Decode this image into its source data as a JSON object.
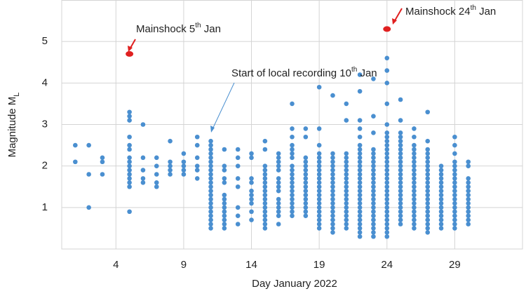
{
  "chart_data": {
    "type": "scatter",
    "xlabel": "Day January 2022",
    "ylabel": "Magnitude M",
    "ylabel_sub": "L",
    "xlim": [
      0,
      34
    ],
    "xticks": [
      4,
      9,
      14,
      19,
      24,
      29
    ],
    "ylim": [
      0,
      6
    ],
    "yticks": [
      1,
      2,
      3,
      4,
      5
    ],
    "grid": true,
    "color": "#4a8fd0",
    "columns": [
      {
        "x": 1,
        "values": [
          2.5,
          2.1
        ]
      },
      {
        "x": 2,
        "values": [
          2.5,
          1.8,
          1.0
        ]
      },
      {
        "x": 3,
        "values": [
          2.2,
          2.1,
          1.8
        ]
      },
      {
        "x": 5,
        "values": [
          3.3,
          3.2,
          3.1,
          2.7,
          2.5,
          2.4,
          2.2,
          2.1,
          2.0,
          1.9,
          1.8,
          1.7,
          1.6,
          1.5,
          0.9
        ]
      },
      {
        "x": 6,
        "values": [
          3.0,
          2.2,
          1.9,
          1.7,
          1.6
        ]
      },
      {
        "x": 7,
        "values": [
          2.2,
          2.0,
          1.8,
          1.6,
          1.5
        ]
      },
      {
        "x": 8,
        "values": [
          2.6,
          2.1,
          2.0,
          1.9,
          1.8
        ]
      },
      {
        "x": 9,
        "values": [
          2.3,
          2.1,
          2.0,
          1.9,
          1.8
        ]
      },
      {
        "x": 10,
        "values": [
          2.7,
          2.5,
          2.2,
          2.0,
          1.9,
          1.7
        ]
      },
      {
        "x": 11,
        "values": [
          2.6,
          2.5,
          2.4,
          2.3,
          2.2,
          2.1,
          2.0,
          1.9,
          1.8,
          1.7,
          1.6,
          1.5,
          1.4,
          1.3,
          1.2,
          1.1,
          1.0,
          0.9,
          0.8,
          0.7,
          0.6,
          0.5
        ]
      },
      {
        "x": 12,
        "values": [
          2.4,
          2.0,
          1.9,
          1.7,
          1.6,
          1.3,
          1.2,
          1.1,
          1.0,
          0.9,
          0.8,
          0.7,
          0.6,
          0.5
        ]
      },
      {
        "x": 13,
        "values": [
          2.4,
          2.2,
          2.0,
          1.7,
          1.5,
          1.0,
          0.8,
          0.6
        ]
      },
      {
        "x": 14,
        "values": [
          2.3,
          2.2,
          1.7,
          1.6,
          1.4,
          1.3,
          1.2,
          1.1,
          0.9,
          0.7
        ]
      },
      {
        "x": 15,
        "values": [
          2.6,
          2.4,
          2.0,
          1.9,
          1.8,
          1.7,
          1.6,
          1.5,
          1.4,
          1.3,
          1.2,
          1.1,
          1.0,
          0.9,
          0.8,
          0.7,
          0.6,
          0.5
        ]
      },
      {
        "x": 16,
        "values": [
          2.3,
          2.2,
          2.1,
          2.0,
          1.9,
          1.7,
          1.6,
          1.5,
          1.4,
          1.2,
          1.1,
          1.0,
          0.9,
          0.8,
          0.6
        ]
      },
      {
        "x": 17,
        "values": [
          3.5,
          2.9,
          2.7,
          2.5,
          2.4,
          2.3,
          2.2,
          2.0,
          1.9,
          1.8,
          1.7,
          1.6,
          1.5,
          1.4,
          1.3,
          1.2,
          1.1,
          1.0,
          0.9,
          0.8
        ]
      },
      {
        "x": 18,
        "values": [
          2.9,
          2.7,
          2.2,
          2.1,
          2.0,
          1.9,
          1.8,
          1.7,
          1.6,
          1.5,
          1.4,
          1.3,
          1.2,
          1.1,
          1.0,
          0.9,
          0.8
        ]
      },
      {
        "x": 19,
        "values": [
          3.9,
          2.9,
          2.5,
          2.3,
          2.2,
          2.1,
          2.0,
          1.9,
          1.8,
          1.7,
          1.6,
          1.5,
          1.4,
          1.3,
          1.2,
          1.1,
          1.0,
          0.9,
          0.8,
          0.7,
          0.6,
          0.5
        ]
      },
      {
        "x": 20,
        "values": [
          3.7,
          2.3,
          2.2,
          2.1,
          2.0,
          1.9,
          1.8,
          1.7,
          1.6,
          1.5,
          1.4,
          1.3,
          1.2,
          1.1,
          1.0,
          0.9,
          0.8,
          0.7,
          0.6,
          0.5,
          0.4
        ]
      },
      {
        "x": 21,
        "values": [
          3.5,
          3.1,
          2.3,
          2.2,
          2.1,
          2.0,
          1.9,
          1.8,
          1.7,
          1.6,
          1.5,
          1.4,
          1.3,
          1.2,
          1.1,
          1.0,
          0.9,
          0.8,
          0.7,
          0.6,
          0.5
        ]
      },
      {
        "x": 22,
        "values": [
          4.2,
          3.8,
          3.1,
          2.9,
          2.7,
          2.5,
          2.4,
          2.3,
          2.2,
          2.1,
          2.0,
          1.9,
          1.8,
          1.7,
          1.6,
          1.5,
          1.4,
          1.3,
          1.2,
          1.1,
          1.0,
          0.9,
          0.8,
          0.7,
          0.6,
          0.5,
          0.4,
          0.3
        ]
      },
      {
        "x": 23,
        "values": [
          4.1,
          3.2,
          2.8,
          2.4,
          2.3,
          2.2,
          2.1,
          2.0,
          1.9,
          1.8,
          1.7,
          1.6,
          1.5,
          1.4,
          1.3,
          1.2,
          1.1,
          1.0,
          0.9,
          0.8,
          0.7,
          0.6,
          0.5,
          0.4,
          0.3
        ]
      },
      {
        "x": 24,
        "values": [
          4.6,
          4.3,
          4.0,
          3.5,
          3.0,
          2.8,
          2.7,
          2.6,
          2.5,
          2.4,
          2.3,
          2.2,
          2.1,
          2.0,
          1.9,
          1.8,
          1.7,
          1.6,
          1.5,
          1.4,
          1.3,
          1.2,
          1.1,
          1.0,
          0.9,
          0.8,
          0.7,
          0.6,
          0.5,
          0.4,
          0.3
        ]
      },
      {
        "x": 25,
        "values": [
          3.6,
          3.1,
          2.8,
          2.7,
          2.6,
          2.5,
          2.4,
          2.3,
          2.2,
          2.1,
          2.0,
          1.9,
          1.8,
          1.7,
          1.6,
          1.5,
          1.4,
          1.3,
          1.2,
          1.1,
          1.0,
          0.9,
          0.8,
          0.7,
          0.6
        ]
      },
      {
        "x": 26,
        "values": [
          2.9,
          2.7,
          2.5,
          2.4,
          2.3,
          2.2,
          2.1,
          2.0,
          1.9,
          1.8,
          1.7,
          1.6,
          1.5,
          1.4,
          1.3,
          1.2,
          1.1,
          1.0,
          0.9,
          0.8,
          0.7,
          0.6,
          0.5
        ]
      },
      {
        "x": 27,
        "values": [
          3.3,
          2.6,
          2.4,
          2.3,
          2.2,
          2.1,
          2.0,
          1.9,
          1.8,
          1.7,
          1.6,
          1.5,
          1.4,
          1.3,
          1.2,
          1.1,
          1.0,
          0.9,
          0.8,
          0.7,
          0.6,
          0.5,
          0.4
        ]
      },
      {
        "x": 28,
        "values": [
          2.0,
          1.9,
          1.8,
          1.7,
          1.6,
          1.5,
          1.4,
          1.3,
          1.2,
          1.1,
          1.0,
          0.9,
          0.8,
          0.7,
          0.6,
          0.5
        ]
      },
      {
        "x": 29,
        "values": [
          2.7,
          2.5,
          2.3,
          2.1,
          2.0,
          1.9,
          1.8,
          1.7,
          1.6,
          1.5,
          1.4,
          1.3,
          1.2,
          1.1,
          1.0,
          0.9,
          0.8,
          0.7,
          0.6,
          0.5
        ]
      },
      {
        "x": 30,
        "values": [
          2.1,
          2.0,
          1.7,
          1.6,
          1.5,
          1.4,
          1.3,
          1.2,
          1.1,
          1.0,
          0.9,
          0.8,
          0.7,
          0.6
        ]
      }
    ],
    "mainshocks": {
      "color": "#e02020",
      "x": [
        5,
        24
      ],
      "values": [
        4.7,
        5.3
      ]
    },
    "annotations": [
      {
        "text": "Mainshock 5",
        "sup": "th",
        "tail": " Jan"
      },
      {
        "text": "Mainshock 24",
        "sup": "th",
        "tail": " Jan"
      },
      {
        "text": "Start of local recording 10",
        "sup": "th",
        "tail": " Jan"
      }
    ]
  }
}
